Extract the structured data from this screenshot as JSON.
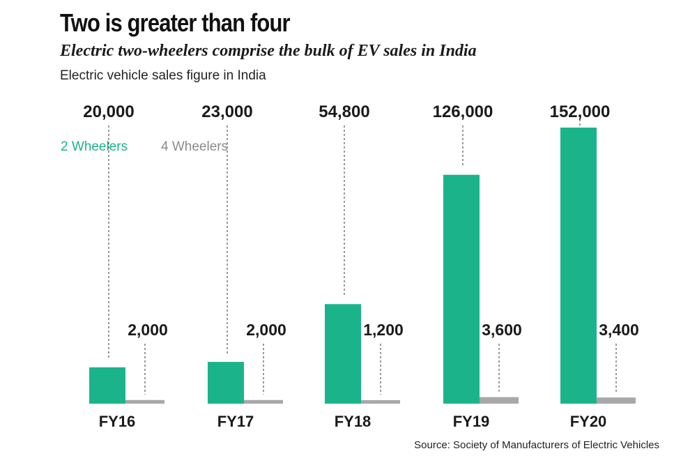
{
  "title": "Two is greater than four",
  "subtitle": "Electric two-wheelers comprise the bulk of EV sales in India",
  "description": "Electric vehicle sales figure in India",
  "source": "Source: Society of Manufacturers of Electric Vehicles",
  "colors": {
    "two_wheelers": "#1bb48a",
    "four_wheelers": "#a7a8aa",
    "legend_four_text": "#8a8b8d",
    "label": "#1a1a1a"
  },
  "chart_data": {
    "type": "bar",
    "categories": [
      "FY16",
      "FY17",
      "FY18",
      "FY19",
      "FY20"
    ],
    "series": [
      {
        "name": "2 Wheelers",
        "values": [
          20000,
          23000,
          54800,
          126000,
          152000
        ],
        "labels": [
          "20,000",
          "23,000",
          "54,800",
          "126,000",
          "152,000"
        ]
      },
      {
        "name": "4 Wheelers",
        "values": [
          2000,
          2000,
          1200,
          3600,
          3400
        ],
        "labels": [
          "2,000",
          "2,000",
          "1,200",
          "3,600",
          "3,400"
        ]
      }
    ],
    "legend_position": "top-left",
    "grid": false
  }
}
